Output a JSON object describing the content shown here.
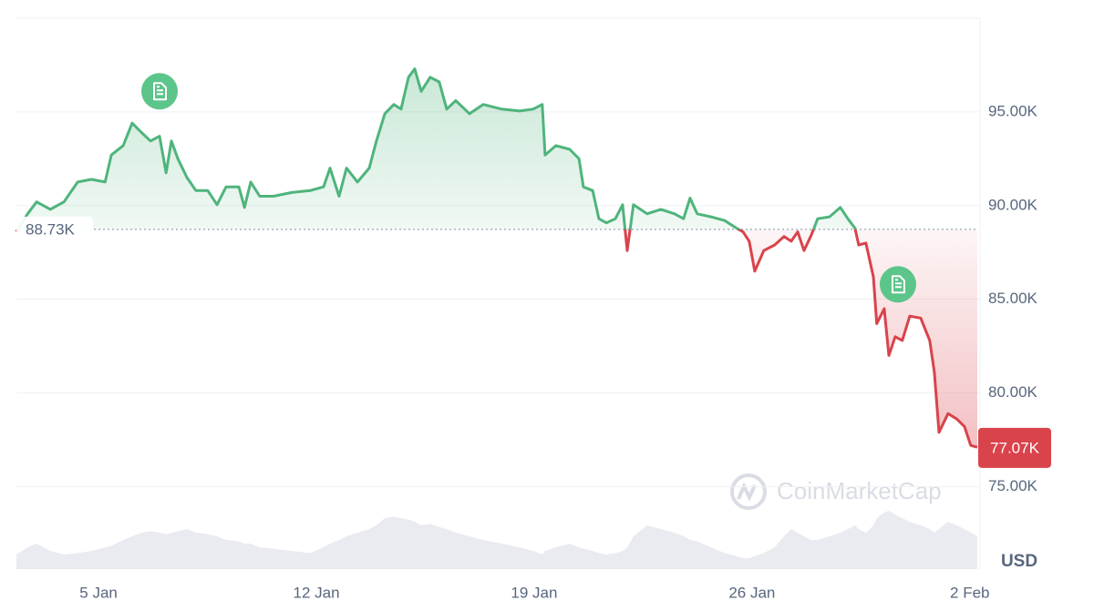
{
  "chart_data": {
    "type": "baseline",
    "x": [
      2.36,
      2.72,
      3.01,
      3.45,
      3.89,
      4.33,
      4.77,
      5.21,
      5.41,
      5.79,
      6.08,
      6.38,
      6.67,
      6.96,
      7.17,
      7.34,
      7.55,
      7.84,
      8.13,
      8.51,
      8.81,
      9.1,
      9.51,
      9.69,
      9.89,
      10.18,
      10.62,
      11.21,
      11.8,
      12.23,
      12.44,
      12.73,
      12.97,
      13.32,
      13.7,
      13.93,
      14.2,
      14.49,
      14.72,
      14.96,
      15.16,
      15.37,
      15.66,
      15.95,
      16.19,
      16.48,
      16.92,
      17.36,
      17.95,
      18.53,
      18.97,
      19.26,
      19.35,
      19.7,
      20.14,
      20.44,
      20.58,
      20.88,
      21.08,
      21.32,
      21.61,
      21.84,
      21.99,
      22.19,
      22.63,
      23.07,
      23.51,
      23.8,
      24.01,
      24.24,
      24.68,
      25.12,
      25.5,
      25.71,
      25.91,
      26.09,
      26.38,
      26.73,
      27.03,
      27.26,
      27.47,
      27.67,
      27.91,
      28.11,
      28.49,
      28.84,
      29.08,
      29.31,
      29.43,
      29.66,
      29.9,
      30.01,
      30.25,
      30.4,
      30.6,
      30.83,
      31.07,
      31.42,
      31.71,
      31.86,
      32.01,
      32.3,
      32.59,
      32.83,
      33.03,
      33.24
    ],
    "values": [
      88.6,
      89.56,
      90.2,
      89.8,
      90.2,
      91.26,
      91.4,
      91.26,
      92.7,
      93.2,
      94.4,
      93.9,
      93.45,
      93.7,
      91.75,
      93.45,
      92.5,
      91.5,
      90.8,
      90.8,
      90.05,
      91.0,
      91.0,
      89.9,
      91.26,
      90.5,
      90.5,
      90.7,
      90.8,
      91.0,
      92.0,
      90.5,
      92.0,
      91.26,
      92.0,
      93.45,
      94.9,
      95.4,
      95.15,
      96.85,
      97.3,
      96.1,
      96.85,
      96.6,
      95.15,
      95.6,
      94.9,
      95.4,
      95.15,
      95.05,
      95.15,
      95.4,
      92.7,
      93.2,
      93.0,
      92.5,
      91.0,
      90.8,
      89.3,
      89.08,
      89.3,
      90.05,
      87.6,
      90.05,
      89.56,
      89.8,
      89.56,
      89.3,
      90.4,
      89.56,
      89.4,
      89.2,
      88.8,
      88.6,
      88.1,
      86.5,
      87.6,
      87.9,
      88.35,
      88.1,
      88.6,
      87.6,
      88.45,
      89.3,
      89.4,
      89.9,
      89.3,
      88.8,
      87.9,
      88.0,
      86.2,
      83.7,
      84.5,
      82.0,
      83.0,
      82.8,
      84.1,
      84.0,
      82.8,
      81.1,
      77.9,
      78.9,
      78.6,
      78.2,
      77.2,
      77.1
    ],
    "volume": {
      "axis": "y2",
      "color": "#e9ebf0",
      "values": [
        20,
        30,
        35,
        25,
        20,
        22,
        25,
        30,
        32,
        40,
        45,
        50,
        52,
        50,
        48,
        50,
        52,
        55,
        50,
        48,
        45,
        40,
        38,
        35,
        35,
        30,
        28,
        25,
        22,
        30,
        35,
        40,
        45,
        50,
        55,
        60,
        70,
        72,
        70,
        68,
        65,
        60,
        62,
        58,
        55,
        50,
        45,
        40,
        35,
        30,
        25,
        20,
        25,
        30,
        35,
        30,
        28,
        25,
        22,
        20,
        22,
        25,
        30,
        45,
        60,
        55,
        50,
        45,
        40,
        38,
        30,
        22,
        18,
        15,
        15,
        18,
        22,
        30,
        45,
        55,
        50,
        45,
        40,
        40,
        45,
        50,
        55,
        60,
        55,
        50,
        60,
        70,
        78,
        80,
        75,
        70,
        65,
        60,
        55,
        50,
        55,
        65,
        60,
        55,
        50,
        45
      ]
    },
    "color_up": "#4fb47c",
    "color_down": "#d9434b",
    "xlim": [
      2.36,
      33.27
    ],
    "xticks": [
      {
        "value": 5,
        "label": "5 Jan"
      },
      {
        "value": 12,
        "label": "12 Jan"
      },
      {
        "value": 19,
        "label": "19 Jan"
      },
      {
        "value": 26,
        "label": "26 Jan"
      },
      {
        "value": 33,
        "label": "2 Feb"
      }
    ],
    "ylim": [
      70.6,
      100
    ],
    "yticks": [
      {
        "value": 75,
        "label": "75.00K"
      },
      {
        "value": 80,
        "label": "80.00K"
      },
      {
        "value": 85,
        "label": "85.00K"
      },
      {
        "value": 90,
        "label": "90.00K"
      },
      {
        "value": 95,
        "label": "95.00K"
      }
    ],
    "y2lim": [
      0,
      100
    ],
    "grid": true,
    "reference": {
      "value": 88.73,
      "label": "88.73K"
    },
    "last_price": {
      "value": 77.07,
      "label": "77.07K"
    },
    "events": [
      {
        "x": 6.96,
        "y": 96.1
      },
      {
        "x": 30.69,
        "y": 85.8
      }
    ],
    "currency": "USD",
    "watermark": "CoinMarketCap"
  }
}
